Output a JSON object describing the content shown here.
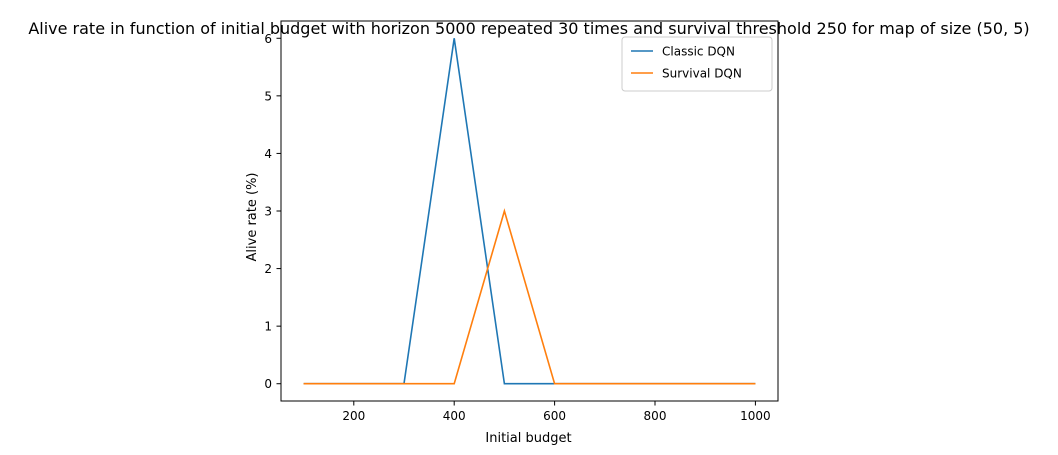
{
  "chart_data": {
    "type": "line",
    "title": "Alive rate in function of initial budget with horizon 5000 repeated 30 times and survival threshold 250 for map of size (50, 5)",
    "xlabel": "Initial budget",
    "ylabel": "Alive rate (%)",
    "xlim": [
      55,
      1045
    ],
    "ylim": [
      -0.3,
      6.3
    ],
    "xticks": [
      200,
      400,
      600,
      800,
      1000
    ],
    "yticks": [
      0,
      1,
      2,
      3,
      4,
      5,
      6
    ],
    "grid": false,
    "legend_position": "top-right",
    "x": [
      100,
      200,
      300,
      400,
      500,
      600,
      700,
      800,
      900,
      1000
    ],
    "series": [
      {
        "name": "Classic DQN",
        "color": "#1f77b4",
        "values": [
          0,
          0,
          0,
          6,
          0,
          0,
          0,
          0,
          0,
          0
        ]
      },
      {
        "name": "Survival DQN",
        "color": "#ff7f0e",
        "values": [
          0,
          0,
          0,
          0,
          3,
          0,
          0,
          0,
          0,
          0
        ]
      }
    ]
  }
}
